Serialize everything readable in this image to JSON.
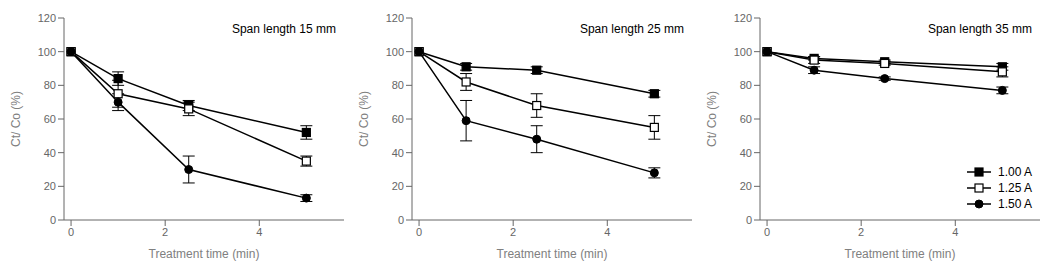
{
  "chart_data": [
    {
      "type": "line",
      "title": "Span length 15 mm",
      "x": [
        0,
        1,
        2.5,
        5
      ],
      "xlabel": "Treatment time (min)",
      "ylabel": "Ct/ Co (%)",
      "xlim": [
        -0.15,
        5.8
      ],
      "ylim": [
        0,
        120
      ],
      "xticks": [
        0,
        2,
        4
      ],
      "yticks": [
        0,
        20,
        40,
        60,
        80,
        100,
        120
      ],
      "series": [
        {
          "name": "1.00 A",
          "color": "#000000",
          "marker": "square",
          "values": [
            100,
            84,
            68,
            52
          ],
          "yerr": [
            0,
            4,
            3,
            4
          ]
        },
        {
          "name": "1.25 A",
          "color": "#000000",
          "marker": "open_square",
          "values": [
            100,
            75,
            66,
            35
          ],
          "yerr": [
            0,
            8,
            4,
            3
          ]
        },
        {
          "name": "1.50 A",
          "color": "#000000",
          "marker": "circle",
          "values": [
            100,
            70,
            30,
            13
          ],
          "yerr": [
            0,
            5,
            8,
            2
          ]
        }
      ]
    },
    {
      "type": "line",
      "title": "Span length 25 mm",
      "x": [
        0,
        1,
        2.5,
        5
      ],
      "xlabel": "Treatment time (min)",
      "ylabel": "Ct/ Co (%)",
      "xlim": [
        -0.15,
        5.8
      ],
      "ylim": [
        0,
        120
      ],
      "xticks": [
        0,
        2,
        4
      ],
      "yticks": [
        0,
        20,
        40,
        60,
        80,
        100,
        120
      ],
      "series": [
        {
          "name": "1.00 A",
          "color": "#000000",
          "marker": "square",
          "values": [
            100,
            91,
            89,
            75
          ],
          "yerr": [
            0,
            2,
            2,
            2
          ]
        },
        {
          "name": "1.25 A",
          "color": "#000000",
          "marker": "open_square",
          "values": [
            100,
            82,
            68,
            55
          ],
          "yerr": [
            0,
            5,
            7,
            7
          ]
        },
        {
          "name": "1.50 A",
          "color": "#000000",
          "marker": "circle",
          "values": [
            100,
            59,
            48,
            28
          ],
          "yerr": [
            0,
            12,
            8,
            3
          ]
        }
      ]
    },
    {
      "type": "line",
      "title": "Span length 35 mm",
      "x": [
        0,
        1,
        2.5,
        5
      ],
      "xlabel": "Treatment time (min)",
      "ylabel": "Ct/ Co (%)",
      "xlim": [
        -0.15,
        5.8
      ],
      "ylim": [
        0,
        120
      ],
      "xticks": [
        0,
        2,
        4
      ],
      "yticks": [
        0,
        20,
        40,
        60,
        80,
        100,
        120
      ],
      "legend": "lower right",
      "series": [
        {
          "name": "1.00 A",
          "color": "#000000",
          "marker": "square",
          "values": [
            100,
            96,
            94,
            91
          ],
          "yerr": [
            0,
            1,
            1,
            2
          ]
        },
        {
          "name": "1.25 A",
          "color": "#000000",
          "marker": "open_square",
          "values": [
            100,
            95,
            93,
            88
          ],
          "yerr": [
            0,
            2,
            1,
            3
          ]
        },
        {
          "name": "1.50 A",
          "color": "#000000",
          "marker": "circle",
          "values": [
            100,
            89,
            84,
            77
          ],
          "yerr": [
            0,
            2,
            1,
            2
          ]
        }
      ]
    }
  ]
}
